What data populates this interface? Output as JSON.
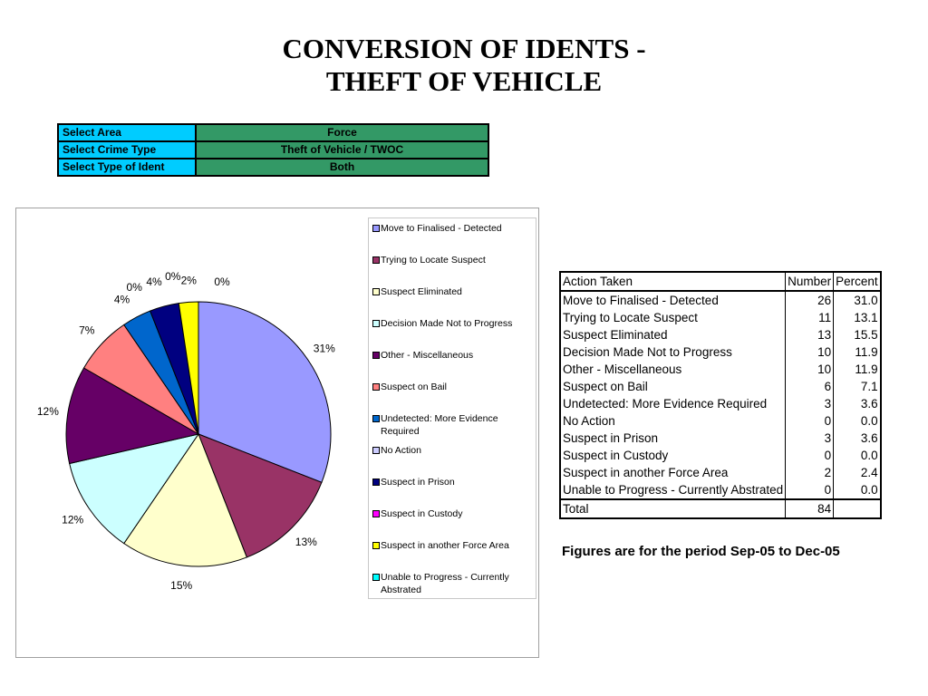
{
  "title": {
    "line1": "CONVERSION OF IDENTS -",
    "line2": "THEFT OF VEHICLE"
  },
  "selectors": [
    {
      "label": "Select Area",
      "value": "Force"
    },
    {
      "label": "Select Crime Type",
      "value": "Theft of Vehicle / TWOC"
    },
    {
      "label": "Select Type of Ident",
      "value": "Both"
    }
  ],
  "colors": {
    "selector_label_bg": "#00ccff",
    "selector_value_bg": "#339966"
  },
  "chart_data": {
    "type": "pie",
    "categories": [
      "Move to Finalised - Detected",
      "Trying to Locate Suspect",
      "Suspect Eliminated",
      "Decision Made Not to Progress",
      "Other - Miscellaneous",
      "Suspect on Bail",
      "Undetected: More Evidence Required",
      "No Action",
      "Suspect in Prison",
      "Suspect in Custody",
      "Suspect in another Force Area",
      "Unable to Progress - Currently Abstrated"
    ],
    "values": [
      26,
      11,
      13,
      10,
      10,
      6,
      3,
      0,
      3,
      0,
      2,
      0
    ],
    "data_labels": [
      "31%",
      "13%",
      "15%",
      "12%",
      "12%",
      "7%",
      "4%",
      "0%",
      "4%",
      "0%",
      "2%",
      "0%"
    ],
    "colors": [
      "#9999ff",
      "#993366",
      "#ffffcc",
      "#ccffff",
      "#660066",
      "#ff8080",
      "#0066cc",
      "#ccccff",
      "#000080",
      "#ff00ff",
      "#ffff00",
      "#00ffff"
    ],
    "legend_position": "right"
  },
  "table": {
    "headers": [
      "Action Taken",
      "Number",
      "Percent"
    ],
    "rows": [
      [
        "Move to Finalised - Detected",
        "26",
        "31.0"
      ],
      [
        "Trying to Locate Suspect",
        "11",
        "13.1"
      ],
      [
        "Suspect Eliminated",
        "13",
        "15.5"
      ],
      [
        "Decision Made Not to Progress",
        "10",
        "11.9"
      ],
      [
        "Other - Miscellaneous",
        "10",
        "11.9"
      ],
      [
        "Suspect on Bail",
        "6",
        "7.1"
      ],
      [
        "Undetected: More Evidence Required",
        "3",
        "3.6"
      ],
      [
        "No Action",
        "0",
        "0.0"
      ],
      [
        "Suspect in Prison",
        "3",
        "3.6"
      ],
      [
        "Suspect in Custody",
        "0",
        "0.0"
      ],
      [
        "Suspect in another Force Area",
        "2",
        "2.4"
      ],
      [
        "Unable to Progress - Currently Abstrated",
        "0",
        "0.0"
      ]
    ],
    "total": [
      "Total",
      "84",
      ""
    ]
  },
  "note": "Figures are for the period Sep-05 to Dec-05"
}
